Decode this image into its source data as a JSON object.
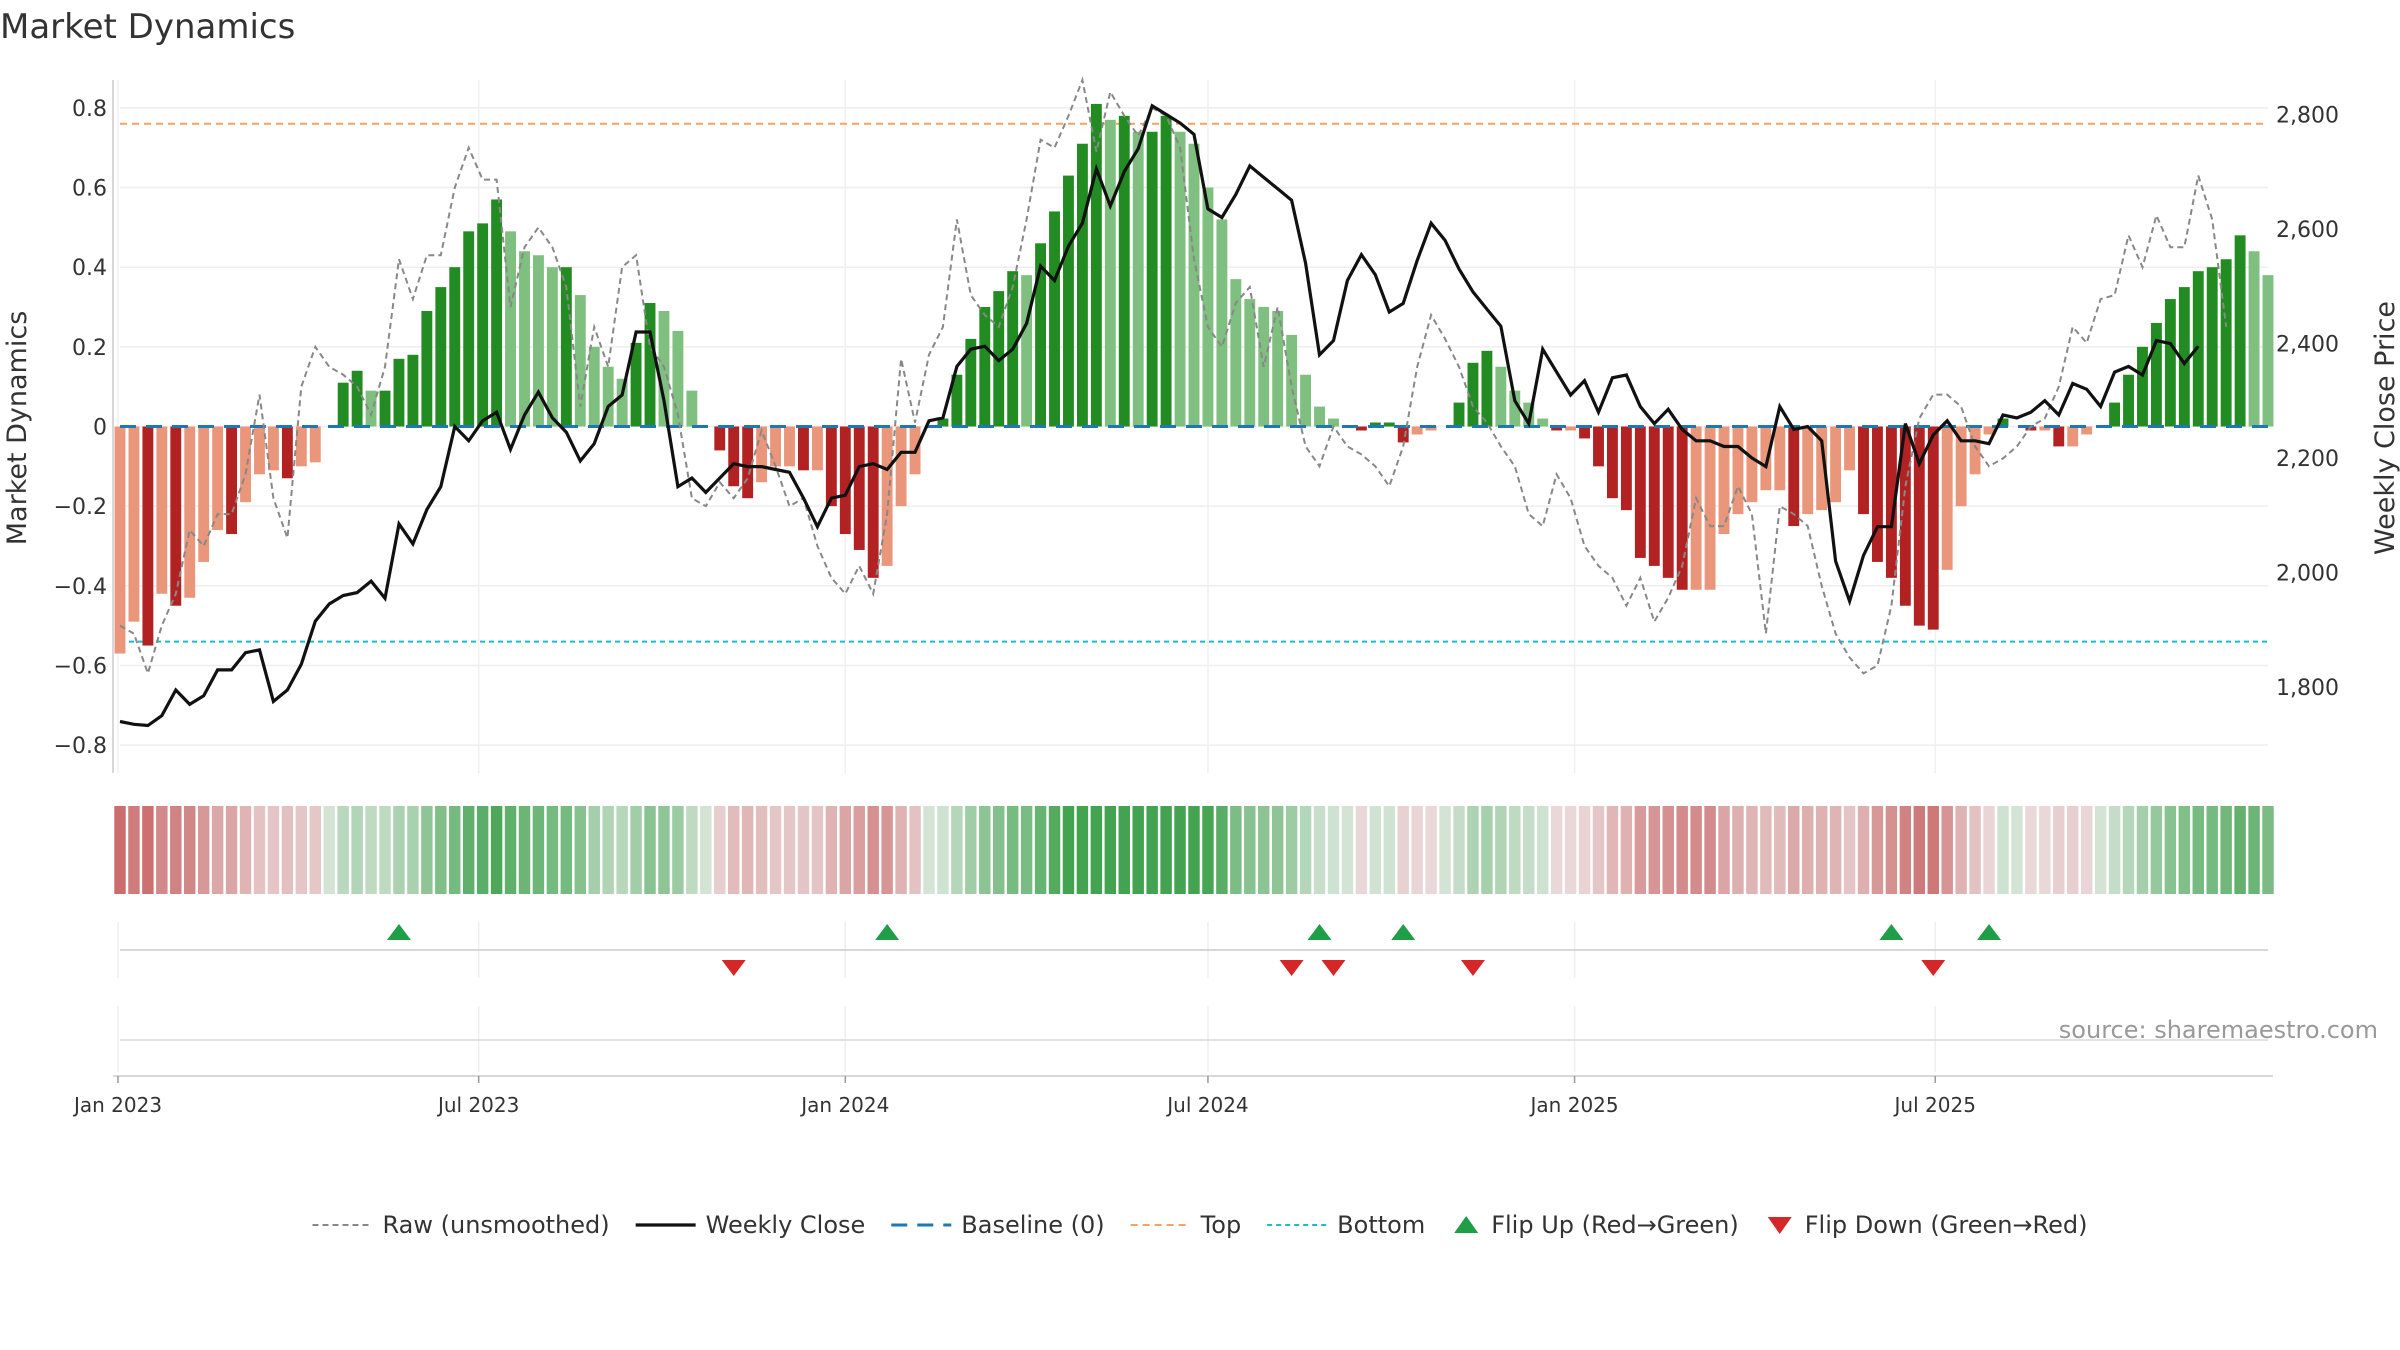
{
  "chart_data": {
    "type": "bar",
    "title": "Market Dynamics",
    "ylabel_left": "Market Dynamics",
    "ylabel_right": "Weekly Close Price",
    "ylim_left": [
      -0.87,
      0.87
    ],
    "ylim_right": [
      1650,
      2860
    ],
    "yticks_left": [
      -0.8,
      -0.6,
      -0.4,
      -0.2,
      0,
      0.2,
      0.4,
      0.6,
      0.8
    ],
    "ytick_labels_left": [
      "−0.8",
      "−0.6",
      "−0.4",
      "−0.2",
      "0",
      "0.2",
      "0.4",
      "0.6",
      "0.8"
    ],
    "yticks_right": [
      1800,
      2000,
      2200,
      2400,
      2600,
      2800
    ],
    "ytick_labels_right": [
      "1,800",
      "2,000",
      "2,200",
      "2,400",
      "2,600",
      "2,800"
    ],
    "x_start": "2023-01-02",
    "x_ticks": [
      {
        "date": "2023-01-01",
        "label": "Jan 2023"
      },
      {
        "date": "2023-07-01",
        "label": "Jul 2023"
      },
      {
        "date": "2024-01-01",
        "label": "Jan 2024"
      },
      {
        "date": "2024-07-01",
        "label": "Jul 2024"
      },
      {
        "date": "2025-01-01",
        "label": "Jan 2025"
      },
      {
        "date": "2025-07-01",
        "label": "Jul 2025"
      }
    ],
    "reference_lines": {
      "baseline": 0,
      "top": 0.76,
      "bottom": -0.54
    },
    "grid": true,
    "legend_position": "bottom-center",
    "legend": [
      {
        "key": "raw",
        "label": "Raw (unsmoothed)"
      },
      {
        "key": "close",
        "label": "Weekly Close"
      },
      {
        "key": "baseline",
        "label": "Baseline (0)"
      },
      {
        "key": "top",
        "label": "Top"
      },
      {
        "key": "bottom",
        "label": "Bottom"
      },
      {
        "key": "flipup",
        "label": "Flip Up (Red→Green)"
      },
      {
        "key": "flipdown",
        "label": "Flip Down (Green→Red)"
      }
    ],
    "colors": {
      "green_dark": "#228b22",
      "green_light": "#7fbf7f",
      "red_dark": "#b22222",
      "red_light": "#e9967a",
      "close": "#111111",
      "raw": "#888888",
      "baseline": "#1f77b4",
      "top": "#f4a460",
      "bottom": "#17becf",
      "flip_up": "#1f9e47",
      "flip_down": "#d62728"
    },
    "series": [
      {
        "name": "Market Dynamics",
        "values": [
          -0.57,
          -0.49,
          -0.55,
          -0.42,
          -0.45,
          -0.43,
          -0.34,
          -0.26,
          -0.27,
          -0.19,
          -0.12,
          -0.11,
          -0.13,
          -0.1,
          -0.09,
          0,
          0.11,
          0.14,
          0.09,
          0.09,
          0.17,
          0.18,
          0.29,
          0.35,
          0.4,
          0.49,
          0.51,
          0.57,
          0.49,
          0.44,
          0.43,
          0.4,
          0.4,
          0.33,
          0.2,
          0.15,
          0.12,
          0.21,
          0.31,
          0.29,
          0.24,
          0.09,
          0,
          -0.06,
          -0.15,
          -0.18,
          -0.14,
          -0.1,
          -0.1,
          -0.11,
          -0.11,
          -0.2,
          -0.27,
          -0.31,
          -0.38,
          -0.35,
          -0.2,
          -0.12,
          0,
          0.02,
          0.13,
          0.22,
          0.3,
          0.34,
          0.39,
          0.38,
          0.46,
          0.54,
          0.63,
          0.71,
          0.81,
          0.77,
          0.78,
          0.74,
          0.74,
          0.78,
          0.74,
          0.71,
          0.6,
          0.52,
          0.37,
          0.32,
          0.3,
          0.29,
          0.23,
          0.13,
          0.05,
          0.02,
          0,
          -0.01,
          0.01,
          0.01,
          -0.04,
          -0.02,
          -0.01,
          0,
          0.06,
          0.16,
          0.19,
          0.15,
          0.09,
          0.06,
          0.02,
          -0.01,
          -0.01,
          -0.03,
          -0.1,
          -0.18,
          -0.21,
          -0.33,
          -0.35,
          -0.38,
          -0.41,
          -0.41,
          -0.41,
          -0.27,
          -0.22,
          -0.19,
          -0.16,
          -0.16,
          -0.25,
          -0.22,
          -0.21,
          -0.19,
          -0.11,
          -0.22,
          -0.34,
          -0.38,
          -0.45,
          -0.5,
          -0.51,
          -0.36,
          -0.2,
          -0.12,
          -0.02,
          0.02,
          0,
          -0.01,
          -0.01,
          -0.05,
          -0.05,
          -0.02,
          0,
          0.06,
          0.13,
          0.2,
          0.26,
          0.32,
          0.35,
          0.39,
          0.4,
          0.42,
          0.48,
          0.44,
          0.38
        ]
      },
      {
        "name": "Raw (unsmoothed)",
        "values": [
          -0.5,
          -0.52,
          -0.62,
          -0.5,
          -0.42,
          -0.26,
          -0.3,
          -0.22,
          -0.22,
          -0.12,
          0.08,
          -0.18,
          -0.28,
          0.1,
          0.2,
          0.15,
          0.13,
          0.1,
          0.03,
          0.15,
          0.42,
          0.32,
          0.43,
          0.43,
          0.6,
          0.7,
          0.62,
          0.62,
          0.3,
          0.45,
          0.5,
          0.45,
          0.35,
          0.05,
          0.25,
          0.15,
          0.4,
          0.43,
          0.2,
          0.15,
          0.03,
          -0.18,
          -0.2,
          -0.14,
          -0.18,
          -0.13,
          -0.01,
          -0.1,
          -0.2,
          -0.18,
          -0.3,
          -0.38,
          -0.42,
          -0.35,
          -0.42,
          -0.22,
          0.17,
          0.01,
          0.18,
          0.25,
          0.52,
          0.33,
          0.28,
          0.25,
          0.35,
          0.52,
          0.72,
          0.7,
          0.78,
          0.87,
          0.69,
          0.84,
          0.78,
          0.73,
          0.8,
          0.78,
          0.7,
          0.42,
          0.25,
          0.2,
          0.31,
          0.35,
          0.15,
          0.3,
          0.1,
          -0.05,
          -0.1,
          0,
          -0.05,
          -0.07,
          -0.1,
          -0.15,
          -0.05,
          0.15,
          0.28,
          0.22,
          0.15,
          0.05,
          0.01,
          -0.05,
          -0.1,
          -0.22,
          -0.25,
          -0.12,
          -0.18,
          -0.3,
          -0.35,
          -0.38,
          -0.45,
          -0.38,
          -0.49,
          -0.43,
          -0.35,
          -0.18,
          -0.25,
          -0.25,
          -0.15,
          -0.22,
          -0.52,
          -0.2,
          -0.22,
          -0.25,
          -0.4,
          -0.52,
          -0.58,
          -0.62,
          -0.6,
          -0.45,
          -0.15,
          0.02,
          0.08,
          0.08,
          0.05,
          -0.05,
          -0.1,
          -0.08,
          -0.05,
          0,
          0.02,
          0.1,
          0.25,
          0.21,
          0.32,
          0.33,
          0.48,
          0.4,
          0.53,
          0.45,
          0.45,
          0.63,
          0.52,
          0.25
        ]
      },
      {
        "name": "Weekly Close",
        "values": [
          1740,
          1735,
          1733,
          1750,
          1795,
          1770,
          1785,
          1830,
          1830,
          1860,
          1865,
          1775,
          1795,
          1840,
          1915,
          1945,
          1960,
          1965,
          1985,
          1955,
          2085,
          2050,
          2110,
          2150,
          2255,
          2230,
          2265,
          2280,
          2215,
          2275,
          2315,
          2270,
          2245,
          2195,
          2225,
          2290,
          2310,
          2420,
          2420,
          2300,
          2150,
          2165,
          2140,
          2165,
          2190,
          2185,
          2185,
          2180,
          2175,
          2130,
          2080,
          2130,
          2135,
          2185,
          2190,
          2180,
          2210,
          2210,
          2265,
          2270,
          2360,
          2390,
          2395,
          2370,
          2390,
          2435,
          2535,
          2510,
          2570,
          2610,
          2705,
          2640,
          2700,
          2740,
          2815,
          2800,
          2785,
          2765,
          2635,
          2620,
          2660,
          2710,
          2690,
          2670,
          2650,
          2540,
          2380,
          2405,
          2510,
          2555,
          2520,
          2455,
          2470,
          2545,
          2610,
          2580,
          2530,
          2490,
          2460,
          2430,
          2300,
          2260,
          2390,
          2350,
          2310,
          2335,
          2280,
          2340,
          2345,
          2290,
          2260,
          2285,
          2250,
          2230,
          2230,
          2220,
          2220,
          2200,
          2185,
          2290,
          2250,
          2255,
          2230,
          2020,
          1950,
          2030,
          2080,
          2080,
          2260,
          2190,
          2240,
          2265,
          2230,
          2230,
          2225,
          2275,
          2270,
          2280,
          2300,
          2275,
          2330,
          2320,
          2290,
          2350,
          2360,
          2345,
          2405,
          2400,
          2365,
          2395
        ]
      }
    ],
    "flips": {
      "up": [
        "2023-05-22",
        "2024-01-22",
        "2024-08-26",
        "2024-10-07",
        "2025-06-09",
        "2025-07-28"
      ],
      "down": [
        "2023-11-06",
        "2024-08-12",
        "2024-09-02",
        "2024-11-11",
        "2025-06-30"
      ]
    }
  },
  "source": {
    "text": "source: sharemaestro.com"
  }
}
